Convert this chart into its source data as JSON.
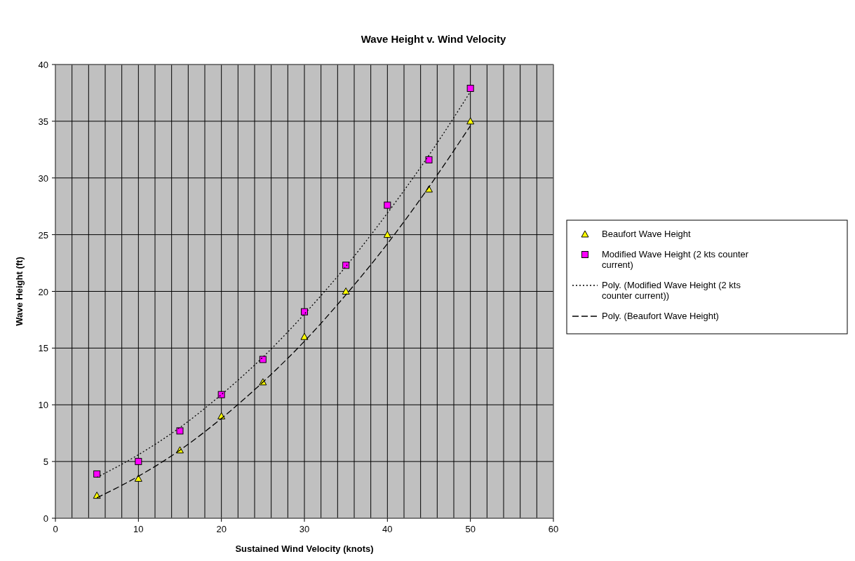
{
  "chart_data": {
    "type": "scatter",
    "title": "Wave Height v. Wind Velocity",
    "xlabel": "Sustained Wind Velocity (knots)",
    "ylabel": "Wave Height (ft)",
    "x": [
      5,
      10,
      15,
      20,
      25,
      30,
      35,
      40,
      45,
      50
    ],
    "series": [
      {
        "name": "Beaufort Wave Height",
        "color": "#ffff00",
        "marker": "triangle",
        "values": [
          2,
          3.5,
          6,
          9,
          12,
          16,
          20,
          25,
          29,
          35
        ]
      },
      {
        "name": "Modified Wave Height (2 kts counter current)",
        "color": "#ff00ff",
        "marker": "square",
        "values": [
          3.9,
          5,
          7.7,
          10.9,
          14,
          18.2,
          22.3,
          27.6,
          31.6,
          37.9
        ]
      },
      {
        "name": "Poly. (Modified Wave Height (2 kts counter current))",
        "type": "line",
        "color": "#000000",
        "line_style": "dotted",
        "marker": "none",
        "values": [
          3.6,
          5.6,
          8,
          10.9,
          14.2,
          18,
          22.2,
          26.9,
          32,
          37.6
        ]
      },
      {
        "name": "Poly. (Beaufort Wave Height)",
        "type": "line",
        "color": "#000000",
        "line_style": "dashed",
        "marker": "none",
        "values": [
          1.8,
          3.7,
          6,
          8.8,
          12,
          15.6,
          19.7,
          24.2,
          29.2,
          34.6
        ]
      }
    ],
    "xlim": [
      0,
      60
    ],
    "ylim": [
      0,
      40
    ],
    "xticks": [
      0,
      {
        "value": 2,
        "label": null
      },
      {
        "value": 4,
        "label": null
      },
      {
        "value": 6,
        "label": null
      },
      {
        "value": 8,
        "label": null
      },
      10,
      {
        "value": 12,
        "label": null
      },
      {
        "value": 14,
        "label": null
      },
      {
        "value": 16,
        "label": null
      },
      {
        "value": 18,
        "label": null
      },
      20,
      {
        "value": 22,
        "label": null
      },
      {
        "value": 24,
        "label": null
      },
      {
        "value": 26,
        "label": null
      },
      {
        "value": 28,
        "label": null
      },
      30,
      {
        "value": 32,
        "label": null
      },
      {
        "value": 34,
        "label": null
      },
      {
        "value": 36,
        "label": null
      },
      {
        "value": 38,
        "label": null
      },
      40,
      {
        "value": 42,
        "label": null
      },
      {
        "value": 44,
        "label": null
      },
      {
        "value": 46,
        "label": null
      },
      {
        "value": 48,
        "label": null
      },
      50,
      {
        "value": 52,
        "label": null
      },
      {
        "value": 54,
        "label": null
      },
      {
        "value": 56,
        "label": null
      },
      {
        "value": 58,
        "label": null
      },
      60
    ],
    "yticks": [
      0,
      5,
      10,
      15,
      20,
      25,
      30,
      35,
      40
    ],
    "grid": true,
    "legend": "right"
  }
}
